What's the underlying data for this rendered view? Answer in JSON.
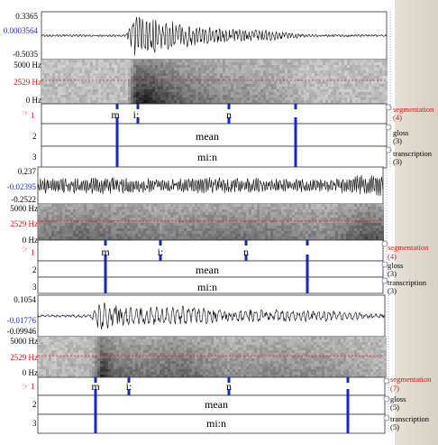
{
  "panels": [
    {
      "waveform": {
        "max": "0.3365",
        "mid": "0.0003564",
        "min": "-0.5035"
      },
      "spectrogram": {
        "top": "5000 Hz",
        "mid": "2529 Hz",
        "bottom": "0 Hz"
      },
      "tiers": [
        {
          "number": "1",
          "name": "segmentation",
          "count": "(4)",
          "labels": [
            "m",
            "i:",
            "n"
          ]
        },
        {
          "number": "2",
          "name": "gloss",
          "count": "(3)",
          "text": "mean"
        },
        {
          "number": "3",
          "name": "transcription",
          "count": "(3)",
          "text": "mi:n"
        }
      ]
    },
    {
      "waveform": {
        "max": "0.237",
        "mid": "-0.02395",
        "min": "-0.2522"
      },
      "spectrogram": {
        "top": "5000 Hz",
        "mid": "2529 Hz",
        "bottom": "0 Hz"
      },
      "tiers": [
        {
          "number": "1",
          "name": "segmentation",
          "count": "(4)",
          "labels": [
            "m",
            "i:",
            "n"
          ]
        },
        {
          "number": "2",
          "name": "gloss",
          "count": "(3)",
          "text": "mean"
        },
        {
          "number": "3",
          "name": "transcription",
          "count": "(3)",
          "text": "mi:n"
        }
      ]
    },
    {
      "waveform": {
        "max": "0.1054",
        "mid": "-0.01776",
        "min": "-0.09946"
      },
      "spectrogram": {
        "top": "5000 Hz",
        "mid": "2529 Hz",
        "bottom": "0 Hz"
      },
      "tiers": [
        {
          "number": "1",
          "name": "segmentation",
          "count": "(7)",
          "labels": [
            "m",
            "i:",
            "n"
          ]
        },
        {
          "number": "2",
          "name": "gloss",
          "count": "(5)",
          "text": "mean"
        },
        {
          "number": "3",
          "name": "transcription",
          "count": "(5)",
          "text": "mi:n"
        }
      ]
    }
  ],
  "colors": {
    "boundary": "#1428c8",
    "cursor_red": "#dd2222",
    "label_blue": "#1a2fd0"
  }
}
